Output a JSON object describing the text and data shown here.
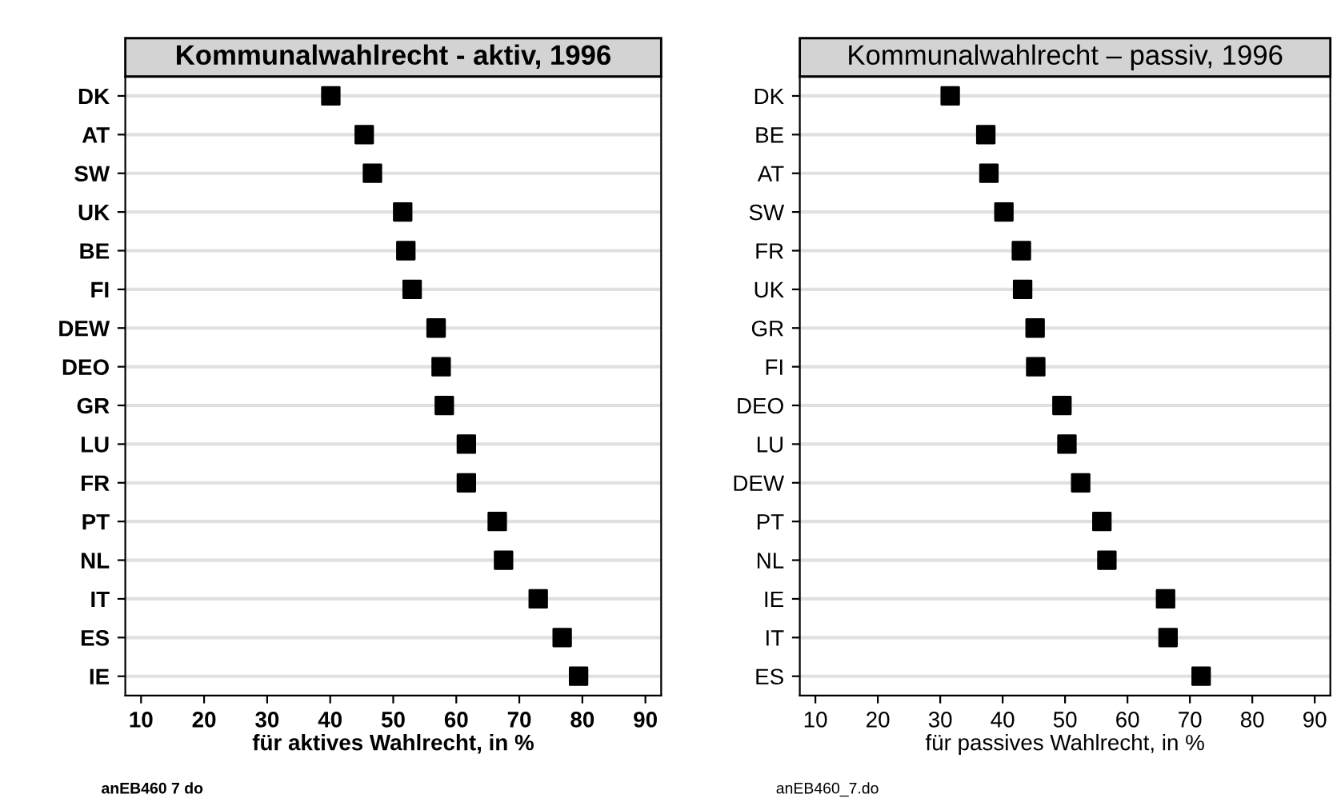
{
  "chart_data": [
    {
      "type": "scatter",
      "title": "Kommunalwahlrecht - aktiv, 1996",
      "xlabel": "für aktives Wahlrecht, in %",
      "orientation": "horizontal",
      "marker": "square",
      "grid": "y",
      "legend": false,
      "categories": [
        "DK",
        "AT",
        "SW",
        "UK",
        "BE",
        "FI",
        "DEW",
        "DEO",
        "GR",
        "LU",
        "FR",
        "PT",
        "NL",
        "IT",
        "ES",
        "IE"
      ],
      "series": [
        {
          "color": "#000000",
          "values": [
            40.1,
            45.4,
            46.7,
            51.5,
            52.0,
            53.0,
            56.8,
            57.6,
            58.1,
            61.6,
            61.6,
            66.5,
            67.5,
            73.0,
            76.8,
            79.4
          ]
        }
      ],
      "xlim": [
        7.5,
        92.5
      ],
      "xticks": [
        10,
        20,
        30,
        40,
        50,
        60,
        70,
        80,
        90
      ],
      "annotations": [
        "anEB460 7 do"
      ]
    },
    {
      "type": "scatter",
      "title": "Kommunalwahlrecht – passiv, 1996",
      "xlabel": "für passives Wahlrecht, in %",
      "orientation": "horizontal",
      "marker": "square",
      "grid": "y",
      "legend": false,
      "categories": [
        "DK",
        "BE",
        "AT",
        "SW",
        "FR",
        "UK",
        "GR",
        "FI",
        "DEO",
        "LU",
        "DEW",
        "PT",
        "NL",
        "IE",
        "IT",
        "ES"
      ],
      "series": [
        {
          "color": "#000000",
          "values": [
            31.6,
            37.3,
            37.8,
            40.2,
            43.0,
            43.2,
            45.2,
            45.3,
            49.5,
            50.3,
            52.5,
            55.9,
            56.7,
            66.1,
            66.5,
            71.8
          ]
        }
      ],
      "xlim": [
        7.5,
        92.5
      ],
      "xticks": [
        10,
        20,
        30,
        40,
        50,
        60,
        70,
        80,
        90
      ],
      "annotations": [
        "anEB460_7.do"
      ]
    }
  ]
}
